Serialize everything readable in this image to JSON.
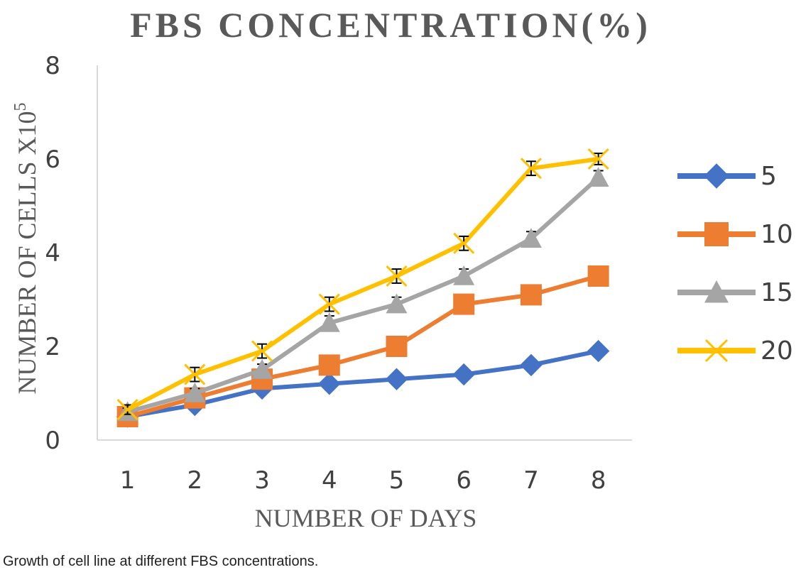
{
  "caption": "Growth of cell line at different FBS concentrations.",
  "chart_data": {
    "type": "line",
    "title": "FBS CONCENTRATION(%)",
    "xlabel": "NUMBER OF DAYS",
    "ylabel": "NUMBER OF CELLS  X10",
    "ylabel_superscript": "5",
    "x": [
      1,
      2,
      3,
      4,
      5,
      6,
      7,
      8
    ],
    "ylim": [
      0,
      8
    ],
    "yticks": [
      0,
      2,
      4,
      6,
      8
    ],
    "legend_position": "right",
    "grid": false,
    "error_bars": true,
    "series": [
      {
        "name": "5",
        "color": "#4472C4",
        "marker": "diamond",
        "values": [
          0.5,
          0.75,
          1.1,
          1.2,
          1.3,
          1.4,
          1.6,
          1.9
        ],
        "errors": [
          0.06,
          0.07,
          0.08,
          0.1,
          0.1,
          0.1,
          0.12,
          0.1
        ]
      },
      {
        "name": "10",
        "color": "#ED7D31",
        "marker": "square",
        "values": [
          0.5,
          0.9,
          1.3,
          1.6,
          2.0,
          2.9,
          3.1,
          3.5
        ],
        "errors": [
          0.06,
          0.07,
          0.08,
          0.1,
          0.1,
          0.1,
          0.1,
          0.1
        ]
      },
      {
        "name": "15",
        "color": "#A5A5A5",
        "marker": "triangle",
        "values": [
          0.6,
          1.0,
          1.5,
          2.5,
          2.9,
          3.5,
          4.3,
          5.6
        ],
        "errors": [
          0.08,
          0.1,
          0.12,
          0.15,
          0.15,
          0.15,
          0.15,
          0.15
        ]
      },
      {
        "name": "20",
        "color": "#FFC000",
        "marker": "x",
        "values": [
          0.65,
          1.4,
          1.9,
          2.9,
          3.5,
          4.2,
          5.8,
          6.0
        ],
        "errors": [
          0.1,
          0.15,
          0.15,
          0.15,
          0.15,
          0.15,
          0.15,
          0.12
        ]
      }
    ]
  }
}
